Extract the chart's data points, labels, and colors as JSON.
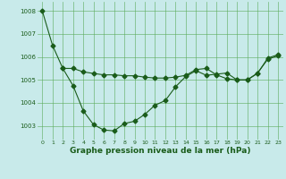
{
  "line1_x": [
    0,
    1,
    2,
    3,
    4,
    5,
    6,
    7,
    8,
    9,
    10,
    11,
    12,
    13,
    14,
    15,
    16,
    17,
    18,
    19,
    20,
    21,
    22,
    23
  ],
  "line1_y": [
    1008.0,
    1006.5,
    1005.5,
    1004.75,
    1003.65,
    1003.05,
    1002.82,
    1002.78,
    1003.1,
    1003.2,
    1003.5,
    1003.9,
    1004.1,
    1004.7,
    1005.15,
    1005.4,
    1005.2,
    1005.25,
    1005.3,
    1005.0,
    1005.0,
    1005.3,
    1005.9,
    1006.05
  ],
  "line2_x": [
    2,
    3,
    4,
    5,
    6,
    7,
    8,
    9,
    10,
    11,
    12,
    13,
    14,
    15,
    16,
    17,
    18,
    19,
    20,
    21,
    22,
    23
  ],
  "line2_y": [
    1005.5,
    1005.5,
    1005.35,
    1005.28,
    1005.22,
    1005.22,
    1005.18,
    1005.18,
    1005.12,
    1005.08,
    1005.08,
    1005.12,
    1005.2,
    1005.45,
    1005.5,
    1005.22,
    1005.05,
    1005.0,
    1005.0,
    1005.28,
    1005.95,
    1006.1
  ],
  "line_color": "#1a5c1a",
  "bg_color": "#c8eaea",
  "grid_color": "#5aaa5a",
  "ylim": [
    1002.4,
    1008.4
  ],
  "yticks": [
    1003,
    1004,
    1005,
    1006,
    1007,
    1008
  ],
  "xlim": [
    -0.5,
    23.5
  ],
  "xticks": [
    0,
    1,
    2,
    3,
    4,
    5,
    6,
    7,
    8,
    9,
    10,
    11,
    12,
    13,
    14,
    15,
    16,
    17,
    18,
    19,
    20,
    21,
    22,
    23
  ],
  "xlabel": "Graphe pression niveau de la mer (hPa)",
  "xlabel_fontsize": 6.5,
  "marker": "D",
  "markersize": 2.5,
  "linewidth": 0.8
}
